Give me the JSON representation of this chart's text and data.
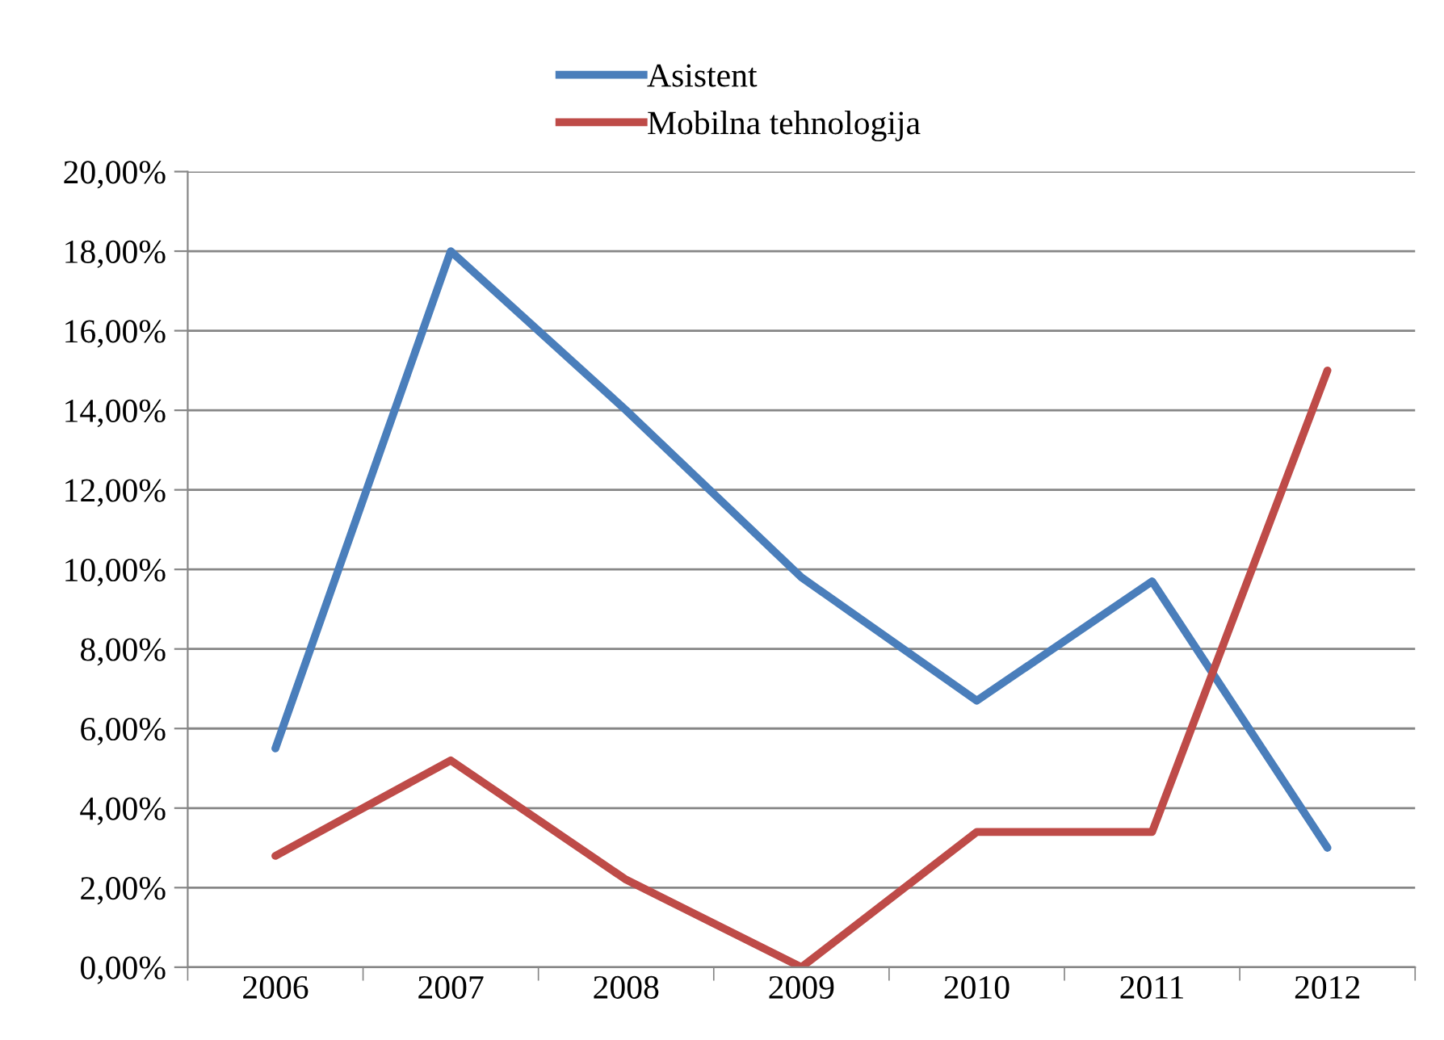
{
  "chart_data": {
    "type": "line",
    "categories": [
      "2006",
      "2007",
      "2008",
      "2009",
      "2010",
      "2011",
      "2012"
    ],
    "series": [
      {
        "name": "Asistent",
        "color": "#4a7ebb",
        "values": [
          5.5,
          18.0,
          14.0,
          9.8,
          6.7,
          9.7,
          3.0
        ]
      },
      {
        "name": "Mobilna tehnologija",
        "color": "#be4b48",
        "values": [
          2.8,
          5.2,
          2.2,
          0.0,
          3.4,
          3.4,
          15.0
        ]
      }
    ],
    "ylim": [
      0,
      20
    ],
    "yticks": [
      {
        "value": 0,
        "label": "0,00%"
      },
      {
        "value": 2,
        "label": "2,00%"
      },
      {
        "value": 4,
        "label": "4,00%"
      },
      {
        "value": 6,
        "label": "6,00%"
      },
      {
        "value": 8,
        "label": "8,00%"
      },
      {
        "value": 10,
        "label": "10,00%"
      },
      {
        "value": 12,
        "label": "12,00%"
      },
      {
        "value": 14,
        "label": "14,00%"
      },
      {
        "value": 16,
        "label": "16,00%"
      },
      {
        "value": 18,
        "label": "18,00%"
      },
      {
        "value": 20,
        "label": "20,00%"
      }
    ],
    "grid": "y",
    "legend": "top",
    "marker": "none",
    "line_style": "solid"
  }
}
